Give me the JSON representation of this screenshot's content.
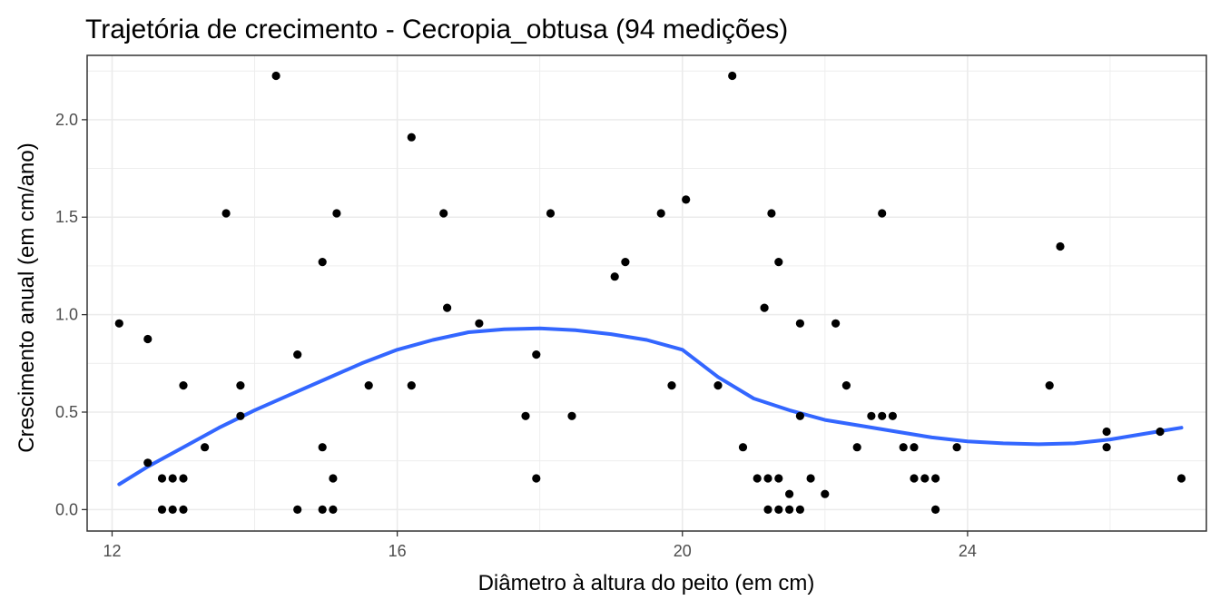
{
  "chart_data": {
    "type": "scatter",
    "title": "Trajetória de crecimento - Cecropia_obtusa (94 medições)",
    "xlabel": "Diâmetro à altura do peito (em cm)",
    "ylabel": "Crescimento anual (em cm/ano)",
    "xlim": [
      11.65,
      27.35
    ],
    "ylim": [
      -0.11,
      2.33
    ],
    "x_ticks": [
      12,
      16,
      20,
      24
    ],
    "x_tick_labels": [
      "12",
      "16",
      "20",
      "24"
    ],
    "y_ticks": [
      0.0,
      0.5,
      1.0,
      1.5,
      2.0
    ],
    "y_tick_labels": [
      "0.0",
      "0.5",
      "1.0",
      "1.5",
      "2.0"
    ],
    "grid": true,
    "legend": "none",
    "colors": {
      "points": "#000000",
      "smooth": "#3366ff",
      "grid": "#ebebeb",
      "panel_border": "#333333"
    },
    "points": [
      {
        "x": 12.1,
        "y": 0.955
      },
      {
        "x": 12.5,
        "y": 0.875
      },
      {
        "x": 12.5,
        "y": 0.24
      },
      {
        "x": 12.7,
        "y": 0.16
      },
      {
        "x": 12.7,
        "y": 0.0
      },
      {
        "x": 12.85,
        "y": 0.16
      },
      {
        "x": 12.85,
        "y": 0.0
      },
      {
        "x": 13.0,
        "y": 0.16
      },
      {
        "x": 13.0,
        "y": 0.0
      },
      {
        "x": 13.0,
        "y": 0.637
      },
      {
        "x": 13.3,
        "y": 0.32
      },
      {
        "x": 13.6,
        "y": 1.52
      },
      {
        "x": 13.8,
        "y": 0.637
      },
      {
        "x": 13.8,
        "y": 0.48
      },
      {
        "x": 14.3,
        "y": 2.225
      },
      {
        "x": 14.6,
        "y": 0.795
      },
      {
        "x": 14.6,
        "y": 0.0
      },
      {
        "x": 14.95,
        "y": 1.27
      },
      {
        "x": 14.95,
        "y": 0.32
      },
      {
        "x": 14.95,
        "y": 0.0
      },
      {
        "x": 15.1,
        "y": 0.16
      },
      {
        "x": 15.1,
        "y": 0.0
      },
      {
        "x": 15.15,
        "y": 1.52
      },
      {
        "x": 15.6,
        "y": 0.637
      },
      {
        "x": 16.2,
        "y": 1.91
      },
      {
        "x": 16.2,
        "y": 0.637
      },
      {
        "x": 16.65,
        "y": 1.52
      },
      {
        "x": 16.7,
        "y": 1.035
      },
      {
        "x": 17.15,
        "y": 0.955
      },
      {
        "x": 17.8,
        "y": 0.48
      },
      {
        "x": 17.95,
        "y": 0.795
      },
      {
        "x": 17.95,
        "y": 0.16
      },
      {
        "x": 18.15,
        "y": 1.52
      },
      {
        "x": 18.45,
        "y": 0.48
      },
      {
        "x": 19.05,
        "y": 1.195
      },
      {
        "x": 19.2,
        "y": 1.27
      },
      {
        "x": 19.7,
        "y": 1.52
      },
      {
        "x": 19.85,
        "y": 0.637
      },
      {
        "x": 20.05,
        "y": 1.59
      },
      {
        "x": 20.5,
        "y": 0.637
      },
      {
        "x": 20.7,
        "y": 2.225
      },
      {
        "x": 20.85,
        "y": 0.32
      },
      {
        "x": 21.05,
        "y": 0.16
      },
      {
        "x": 21.2,
        "y": 0.16
      },
      {
        "x": 21.2,
        "y": 0.0
      },
      {
        "x": 21.15,
        "y": 1.035
      },
      {
        "x": 21.25,
        "y": 1.52
      },
      {
        "x": 21.35,
        "y": 1.27
      },
      {
        "x": 21.35,
        "y": 0.16
      },
      {
        "x": 21.35,
        "y": 0.0
      },
      {
        "x": 21.5,
        "y": 0.08
      },
      {
        "x": 21.5,
        "y": 0.0
      },
      {
        "x": 21.65,
        "y": 0.955
      },
      {
        "x": 21.65,
        "y": 0.48
      },
      {
        "x": 21.65,
        "y": 0.0
      },
      {
        "x": 21.8,
        "y": 0.16
      },
      {
        "x": 22.0,
        "y": 0.08
      },
      {
        "x": 22.15,
        "y": 0.955
      },
      {
        "x": 22.3,
        "y": 0.637
      },
      {
        "x": 22.45,
        "y": 0.32
      },
      {
        "x": 22.65,
        "y": 0.48
      },
      {
        "x": 22.8,
        "y": 0.48
      },
      {
        "x": 22.8,
        "y": 1.52
      },
      {
        "x": 22.95,
        "y": 0.48
      },
      {
        "x": 23.1,
        "y": 0.32
      },
      {
        "x": 23.25,
        "y": 0.32
      },
      {
        "x": 23.25,
        "y": 0.16
      },
      {
        "x": 23.4,
        "y": 0.16
      },
      {
        "x": 23.55,
        "y": 0.16
      },
      {
        "x": 23.55,
        "y": 0.0
      },
      {
        "x": 23.85,
        "y": 0.32
      },
      {
        "x": 25.15,
        "y": 0.637
      },
      {
        "x": 25.3,
        "y": 1.35
      },
      {
        "x": 25.95,
        "y": 0.4
      },
      {
        "x": 25.95,
        "y": 0.32
      },
      {
        "x": 26.7,
        "y": 0.4
      },
      {
        "x": 27.0,
        "y": 0.16
      }
    ],
    "smooth": {
      "x": [
        12.1,
        12.5,
        13.0,
        13.5,
        14.0,
        14.5,
        15.0,
        15.5,
        16.0,
        16.5,
        17.0,
        17.5,
        18.0,
        18.5,
        19.0,
        19.5,
        20.0,
        20.5,
        21.0,
        21.5,
        22.0,
        22.5,
        23.0,
        23.5,
        24.0,
        24.5,
        25.0,
        25.5,
        26.0,
        26.5,
        27.0
      ],
      "y": [
        0.13,
        0.22,
        0.32,
        0.42,
        0.51,
        0.59,
        0.67,
        0.75,
        0.82,
        0.87,
        0.91,
        0.925,
        0.93,
        0.92,
        0.9,
        0.87,
        0.82,
        0.68,
        0.57,
        0.51,
        0.46,
        0.43,
        0.4,
        0.37,
        0.35,
        0.34,
        0.335,
        0.34,
        0.36,
        0.39,
        0.42
      ]
    }
  }
}
